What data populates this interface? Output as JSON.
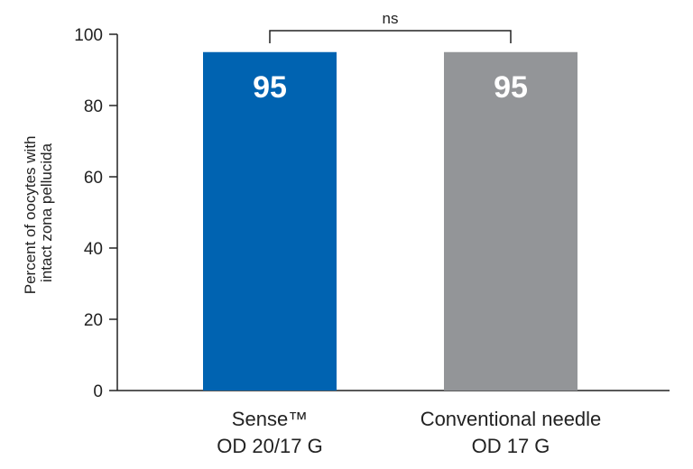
{
  "chart_data": {
    "type": "bar",
    "categories": [
      [
        "Sense™",
        "OD 20/17 G"
      ],
      [
        "Conventional needle",
        "OD 17 G"
      ]
    ],
    "values": [
      95,
      95
    ],
    "value_labels": [
      "95",
      "95"
    ],
    "colors": [
      "#0063b1",
      "#939598"
    ],
    "ylabel": [
      "Percent of oocytes with",
      "intact zona pellucida"
    ],
    "ylim": [
      0,
      100
    ],
    "yticks": [
      0,
      20,
      40,
      60,
      80,
      100
    ],
    "grid": false,
    "legend": "none",
    "annotation": {
      "label": "ns",
      "between": [
        0,
        1
      ]
    }
  }
}
